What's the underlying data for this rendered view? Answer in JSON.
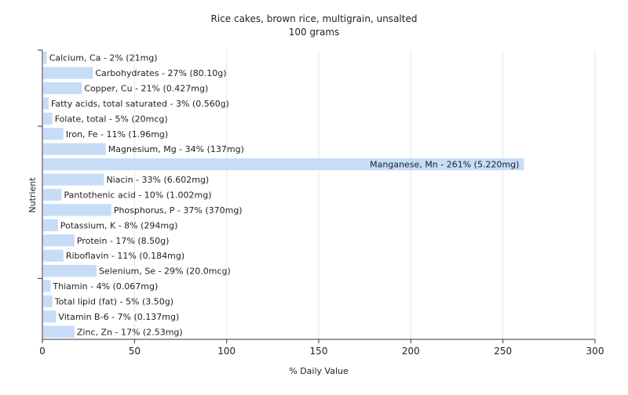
{
  "chart_data": {
    "type": "bar",
    "orientation": "horizontal",
    "title": "Rice cakes, brown rice, multigrain, unsalted",
    "subtitle": "100 grams",
    "xlabel": "% Daily Value",
    "ylabel": "Nutrient",
    "xlim": [
      0,
      300
    ],
    "xticks": [
      0,
      50,
      100,
      150,
      200,
      250,
      300
    ],
    "grid": true,
    "bar_color": "#c6dcf7",
    "categories": [
      "Calcium, Ca - 2% (21mg)",
      "Carbohydrates - 27% (80.10g)",
      "Copper, Cu - 21% (0.427mg)",
      "Fatty acids, total saturated - 3% (0.560g)",
      "Folate, total - 5% (20mcg)",
      "Iron, Fe - 11% (1.96mg)",
      "Magnesium, Mg - 34% (137mg)",
      "Manganese, Mn - 261% (5.220mg)",
      "Niacin - 33% (6.602mg)",
      "Pantothenic acid - 10% (1.002mg)",
      "Phosphorus, P - 37% (370mg)",
      "Potassium, K - 8% (294mg)",
      "Protein - 17% (8.50g)",
      "Riboflavin - 11% (0.184mg)",
      "Selenium, Se - 29% (20.0mcg)",
      "Thiamin - 4% (0.067mg)",
      "Total lipid (fat) - 5% (3.50g)",
      "Vitamin B-6 - 7% (0.137mg)",
      "Zinc, Zn - 17% (2.53mg)"
    ],
    "values": [
      2,
      27,
      21,
      3,
      5,
      11,
      34,
      261,
      33,
      10,
      37,
      8,
      17,
      11,
      29,
      4,
      5,
      7,
      17
    ]
  }
}
